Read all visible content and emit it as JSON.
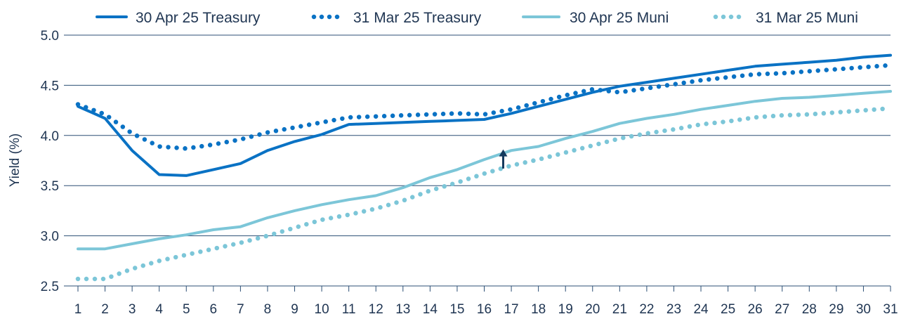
{
  "chart_data": {
    "type": "line",
    "title": "",
    "xlabel": "",
    "ylabel": "Yield (%)",
    "ylim": [
      2.5,
      5.0
    ],
    "yticks": [
      "2.5",
      "3.0",
      "3.5",
      "4.0",
      "4.5",
      "5.0"
    ],
    "grid": true,
    "legend_position": "top",
    "x": [
      1,
      2,
      3,
      4,
      5,
      6,
      7,
      8,
      9,
      10,
      11,
      12,
      13,
      14,
      15,
      16,
      17,
      18,
      19,
      20,
      21,
      22,
      23,
      24,
      25,
      26,
      27,
      28,
      29,
      30,
      31
    ],
    "x_labels": [
      "1",
      "2",
      "3",
      "4",
      "5",
      "6",
      "7",
      "8",
      "9",
      "10",
      "11",
      "12",
      "13",
      "14",
      "15",
      "16",
      "17",
      "18",
      "19",
      "20",
      "21",
      "22",
      "23",
      "24",
      "25",
      "26",
      "27",
      "28",
      "29",
      "30",
      "31"
    ],
    "series": [
      {
        "name": "30 Apr 25 Treasury",
        "style": "solid",
        "color": "#0a72c4",
        "values": [
          4.29,
          4.17,
          3.85,
          3.61,
          3.6,
          3.66,
          3.72,
          3.85,
          3.94,
          4.01,
          4.11,
          4.12,
          4.13,
          4.14,
          4.15,
          4.16,
          4.22,
          4.29,
          4.36,
          4.43,
          4.49,
          4.53,
          4.57,
          4.61,
          4.65,
          4.69,
          4.71,
          4.73,
          4.75,
          4.78,
          4.8
        ]
      },
      {
        "name": "31 Mar 25 Treasury",
        "style": "dotted",
        "color": "#0a72c4",
        "values": [
          4.31,
          4.21,
          4.02,
          3.89,
          3.87,
          3.91,
          3.96,
          4.03,
          4.08,
          4.13,
          4.18,
          4.19,
          4.2,
          4.21,
          4.22,
          4.21,
          4.26,
          4.33,
          4.4,
          4.46,
          4.43,
          4.47,
          4.51,
          4.55,
          4.58,
          4.61,
          4.62,
          4.64,
          4.66,
          4.68,
          4.7
        ]
      },
      {
        "name": "30 Apr 25 Muni",
        "style": "solid",
        "color": "#7cc6d8",
        "values": [
          2.87,
          2.87,
          2.92,
          2.97,
          3.01,
          3.06,
          3.09,
          3.18,
          3.25,
          3.31,
          3.36,
          3.4,
          3.48,
          3.58,
          3.66,
          3.76,
          3.85,
          3.89,
          3.97,
          4.04,
          4.12,
          4.17,
          4.21,
          4.26,
          4.3,
          4.34,
          4.37,
          4.38,
          4.4,
          4.42,
          4.44
        ]
      },
      {
        "name": "31 Mar 25 Muni",
        "style": "dotted",
        "color": "#7cc6d8",
        "values": [
          2.57,
          2.57,
          2.67,
          2.75,
          2.81,
          2.87,
          2.93,
          3.0,
          3.08,
          3.16,
          3.21,
          3.27,
          3.35,
          3.45,
          3.53,
          3.62,
          3.7,
          3.76,
          3.83,
          3.9,
          3.97,
          4.02,
          4.06,
          4.11,
          4.14,
          4.18,
          4.2,
          4.21,
          4.23,
          4.25,
          4.27
        ]
      }
    ],
    "annotations": [
      {
        "type": "arrow",
        "direction": "up",
        "x": 16.7,
        "y_from": 3.67,
        "y_to": 3.84,
        "color": "#153a5e"
      }
    ]
  }
}
